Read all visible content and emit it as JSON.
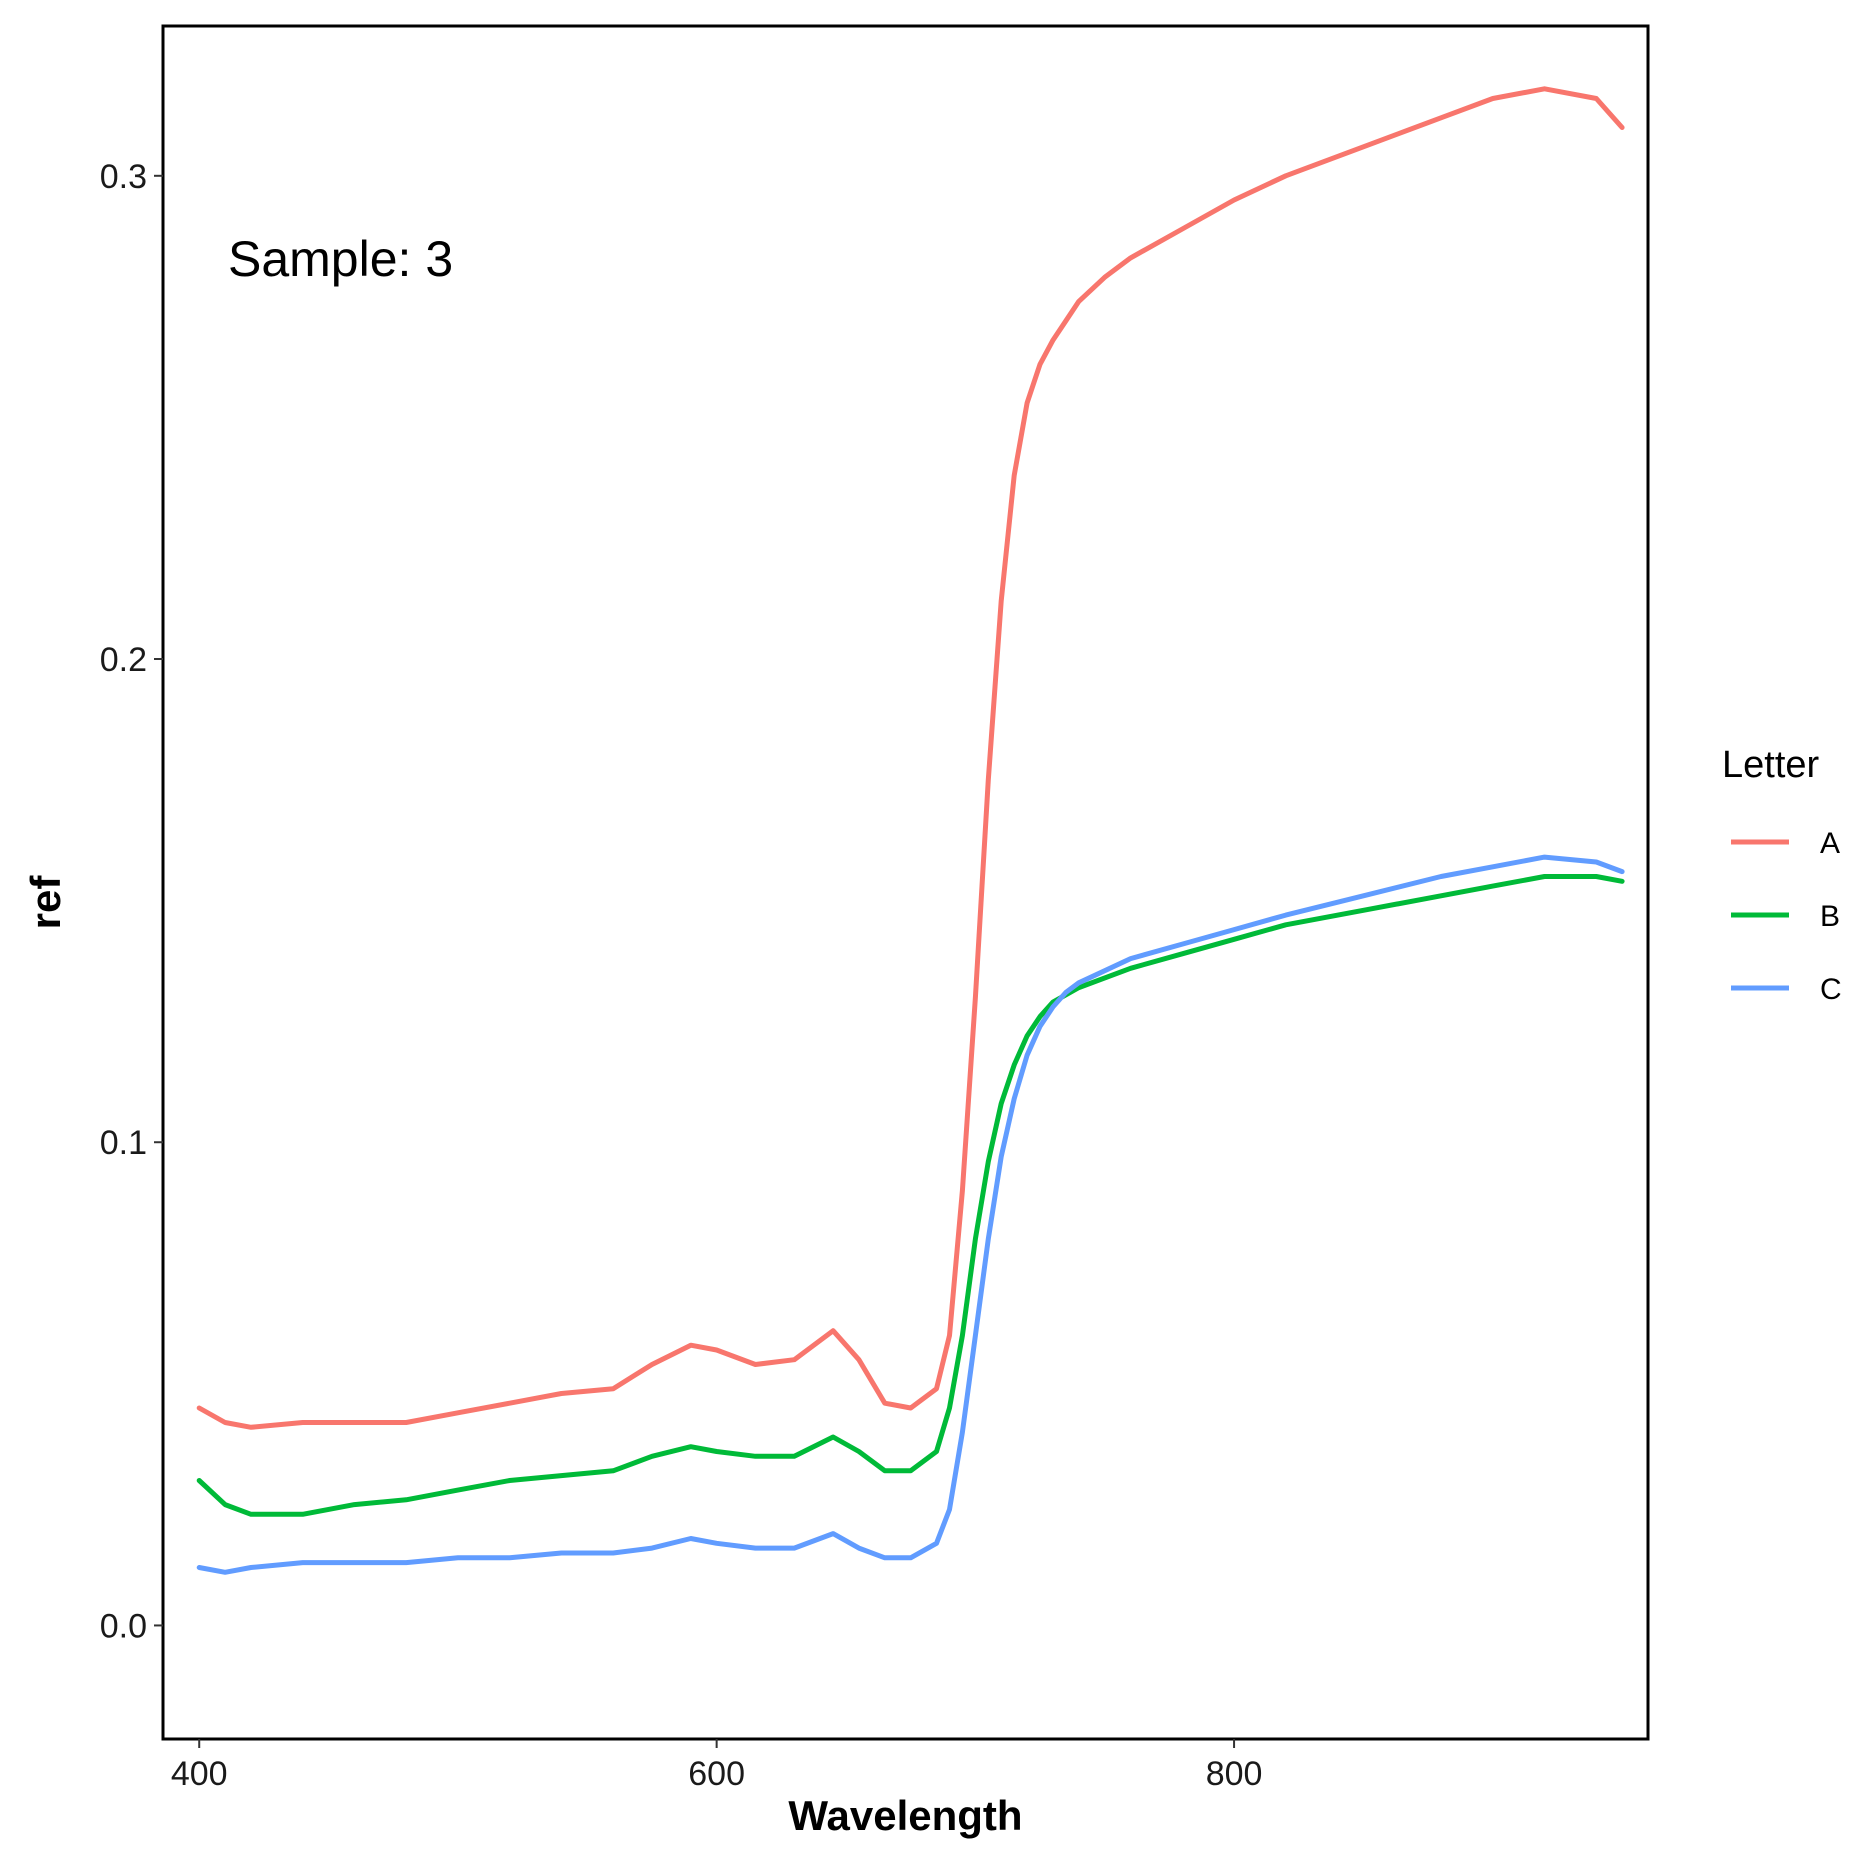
{
  "chart_data": {
    "type": "line",
    "xlabel": "Wavelength",
    "ylabel": "ref",
    "xlim": [
      386,
      960
    ],
    "ylim": [
      -0.0235,
      0.331
    ],
    "x_ticks": [
      400,
      600,
      800
    ],
    "y_ticks": [
      0.0,
      0.1,
      0.2,
      0.3
    ],
    "x_tick_labels": [
      "400",
      "600",
      "800"
    ],
    "y_tick_labels": [
      "0.0",
      "0.1",
      "0.2",
      "0.3"
    ],
    "annotation": "Sample: 3",
    "legend": {
      "title": "Letter",
      "position": "right"
    },
    "grid": false,
    "series": [
      {
        "name": "A",
        "color": "#F8766D",
        "x": [
          400,
          410,
          420,
          440,
          460,
          480,
          500,
          520,
          540,
          560,
          575,
          590,
          600,
          615,
          630,
          645,
          655,
          665,
          675,
          685,
          690,
          695,
          700,
          705,
          710,
          715,
          720,
          725,
          730,
          735,
          740,
          750,
          760,
          780,
          800,
          820,
          850,
          880,
          900,
          920,
          940,
          950
        ],
        "values": [
          0.045,
          0.042,
          0.041,
          0.042,
          0.042,
          0.042,
          0.044,
          0.046,
          0.048,
          0.049,
          0.054,
          0.058,
          0.057,
          0.054,
          0.055,
          0.061,
          0.055,
          0.046,
          0.045,
          0.049,
          0.06,
          0.09,
          0.13,
          0.175,
          0.212,
          0.238,
          0.253,
          0.261,
          0.266,
          0.27,
          0.274,
          0.279,
          0.283,
          0.289,
          0.295,
          0.3,
          0.306,
          0.312,
          0.316,
          0.318,
          0.316,
          0.31
        ]
      },
      {
        "name": "B",
        "color": "#00BA38",
        "x": [
          400,
          410,
          420,
          440,
          460,
          480,
          500,
          520,
          540,
          560,
          575,
          590,
          600,
          615,
          630,
          645,
          655,
          665,
          675,
          685,
          690,
          695,
          700,
          705,
          710,
          715,
          720,
          725,
          730,
          740,
          760,
          780,
          800,
          820,
          850,
          880,
          900,
          920,
          940,
          950
        ],
        "values": [
          0.03,
          0.025,
          0.023,
          0.023,
          0.025,
          0.026,
          0.028,
          0.03,
          0.031,
          0.032,
          0.035,
          0.037,
          0.036,
          0.035,
          0.035,
          0.039,
          0.036,
          0.032,
          0.032,
          0.036,
          0.045,
          0.06,
          0.08,
          0.096,
          0.108,
          0.116,
          0.122,
          0.126,
          0.129,
          0.132,
          0.136,
          0.139,
          0.142,
          0.145,
          0.148,
          0.151,
          0.153,
          0.155,
          0.155,
          0.154
        ]
      },
      {
        "name": "C",
        "color": "#619CFF",
        "x": [
          400,
          410,
          420,
          440,
          460,
          480,
          500,
          520,
          540,
          560,
          575,
          590,
          600,
          615,
          630,
          645,
          655,
          665,
          675,
          685,
          690,
          695,
          700,
          705,
          710,
          715,
          720,
          725,
          730,
          735,
          740,
          760,
          780,
          800,
          820,
          850,
          880,
          900,
          920,
          940,
          950
        ],
        "values": [
          0.012,
          0.011,
          0.012,
          0.013,
          0.013,
          0.013,
          0.014,
          0.014,
          0.015,
          0.015,
          0.016,
          0.018,
          0.017,
          0.016,
          0.016,
          0.019,
          0.016,
          0.014,
          0.014,
          0.017,
          0.024,
          0.04,
          0.06,
          0.08,
          0.097,
          0.109,
          0.118,
          0.124,
          0.128,
          0.131,
          0.133,
          0.138,
          0.141,
          0.144,
          0.147,
          0.151,
          0.155,
          0.157,
          0.159,
          0.158,
          0.156
        ]
      }
    ]
  }
}
